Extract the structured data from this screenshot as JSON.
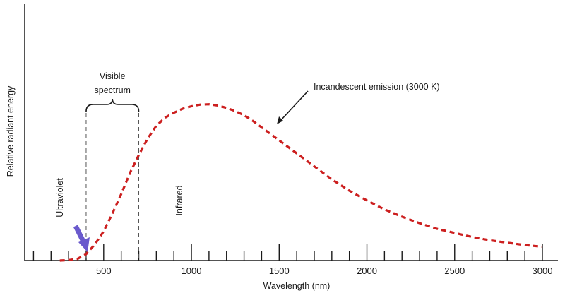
{
  "chart_data": {
    "type": "line",
    "title": "",
    "xlabel": "Wavelength (nm)",
    "ylabel": "Relative radiant energy",
    "xlim": [
      50,
      3100
    ],
    "ylim": [
      0,
      100
    ],
    "x_ticks": [
      500,
      1000,
      1500,
      2000,
      2500,
      3000
    ],
    "x_tick_labels": [
      "500",
      "1000",
      "1500",
      "2000",
      "2500",
      "3000"
    ],
    "minor_tick_step": 100,
    "series": [
      {
        "name": "Incandescent emission (3000 K)",
        "color": "#cc1f1f",
        "style": "dashed",
        "x": [
          250,
          300,
          350,
          400,
          450,
          500,
          550,
          600,
          650,
          700,
          750,
          800,
          850,
          900,
          950,
          1000,
          1050,
          1100,
          1150,
          1200,
          1250,
          1300,
          1350,
          1400,
          1450,
          1500,
          1600,
          1700,
          1800,
          1900,
          2000,
          2100,
          2200,
          2300,
          2400,
          2500,
          2600,
          2700,
          2800,
          2900,
          3000
        ],
        "y": [
          0,
          0.3,
          1,
          4,
          10,
          18,
          29,
          41,
          54,
          65,
          75,
          83,
          88,
          91,
          93.5,
          95,
          96,
          96.2,
          95.5,
          94,
          92,
          89.5,
          86,
          82,
          78,
          74,
          66,
          58,
          50,
          43,
          37,
          31.5,
          27,
          23,
          19.5,
          17,
          14.5,
          12.5,
          11,
          9.5,
          8.5
        ]
      }
    ],
    "annotations": {
      "visible_label_line1": "Visible",
      "visible_label_line2": "spectrum",
      "visible_range": [
        400,
        700
      ],
      "ultraviolet": "Ultraviolet",
      "infrared": "Infrared",
      "series_label": "Incandescent emission (3000 K)",
      "arrow_color": "#6a5acd"
    },
    "grid": false,
    "legend": "none"
  }
}
